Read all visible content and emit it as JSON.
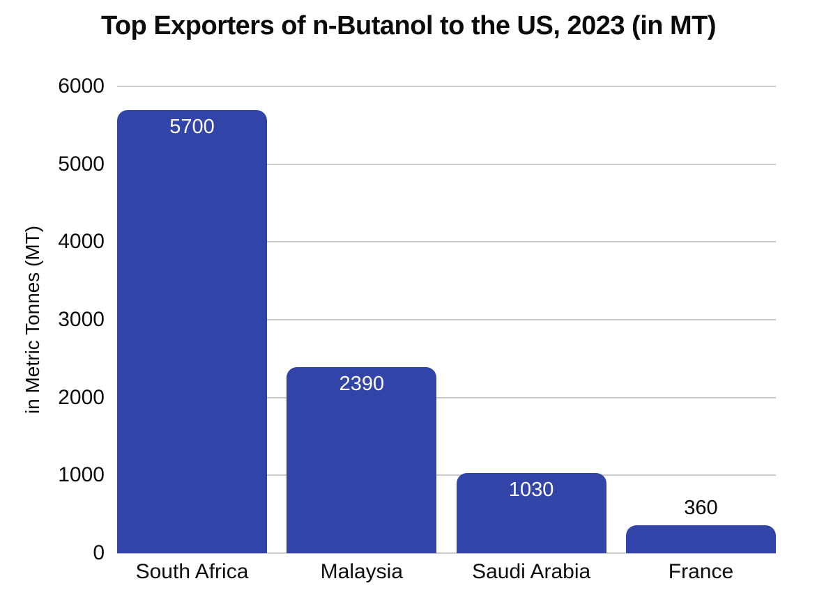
{
  "chart_data": {
    "type": "bar",
    "title": "Top Exporters of n-Butanol to the US, 2023 (in MT)",
    "xlabel": "",
    "ylabel": "in Metric Tonnes (MT)",
    "categories": [
      "South Africa",
      "Malaysia",
      "Saudi Arabia",
      "France"
    ],
    "values": [
      5700,
      2390,
      1030,
      360
    ],
    "value_labels": [
      {
        "text": "5700",
        "position": "inside",
        "color": "#ffffff"
      },
      {
        "text": "2390",
        "position": "inside",
        "color": "#ffffff"
      },
      {
        "text": "1030",
        "position": "inside",
        "color": "#ffffff"
      },
      {
        "text": "360",
        "position": "above",
        "color": "#000000"
      }
    ],
    "ylim": [
      0,
      6000
    ],
    "yticks": [
      0,
      1000,
      2000,
      3000,
      4000,
      5000,
      6000
    ],
    "grid": "horizontal",
    "legend": "none",
    "bar_color": "#3344a8",
    "gridline_color": "#cbcbcb",
    "background": "#ffffff",
    "title_color": "#0b0b0b",
    "axis_text_color": "#0b0b0b"
  }
}
